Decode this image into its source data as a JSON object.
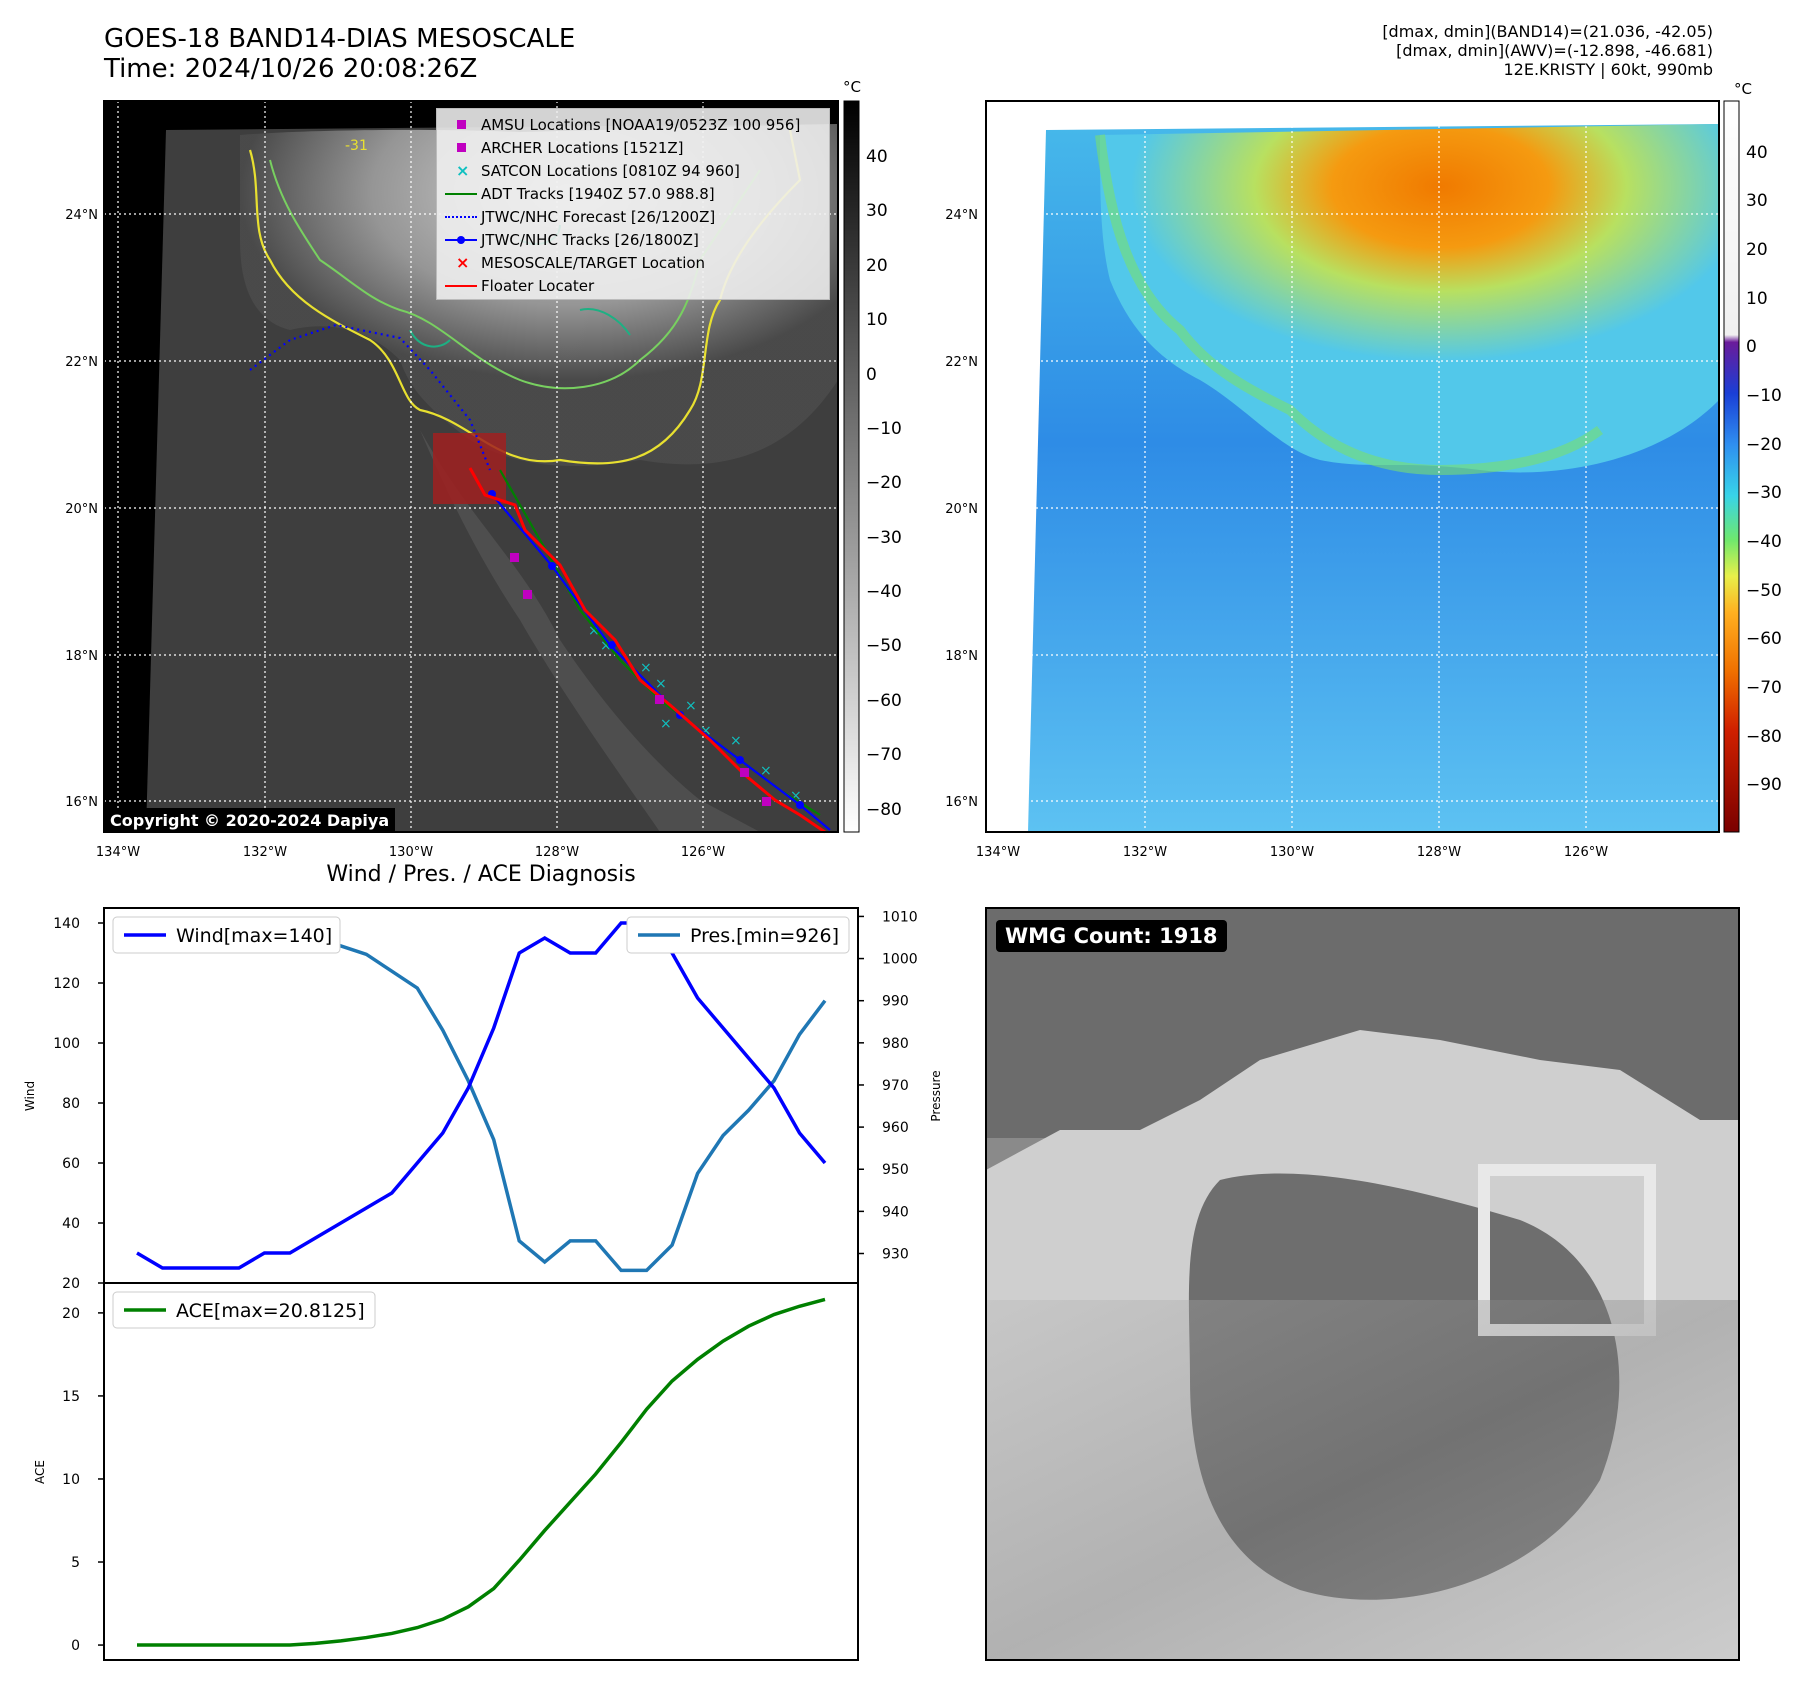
{
  "header": {
    "title_line1": "GOES-18 BAND14-DIAS MESOSCALE",
    "title_line2": "Time: 2024/10/26 20:08:26Z",
    "stats_line1": "[dmax, dmin](BAND14)=(21.036, -42.05)",
    "stats_line2": "[dmax, dmin](AWV)=(-12.898, -46.681)",
    "stats_line3": "12E.KRISTY | 60kt, 990mb"
  },
  "map_left": {
    "legend": [
      {
        "label": "AMSU Locations [NOAA19/0523Z 100 956]",
        "marker": "square",
        "color": "#c000c0"
      },
      {
        "label": "ARCHER Locations [1521Z]",
        "marker": "square",
        "color": "#c000c0"
      },
      {
        "label": "SATCON Locations [0810Z 94 960]",
        "marker": "x",
        "color": "#10c0c0"
      },
      {
        "label": "ADT Tracks [1940Z 57.0 988.8]",
        "marker": "line",
        "color": "#008000"
      },
      {
        "label": "JTWC/NHC Forecast [26/1200Z]",
        "marker": "dotted",
        "color": "#0000ff"
      },
      {
        "label": "JTWC/NHC Tracks [26/1800Z]",
        "marker": "line-dot",
        "color": "#0000ff"
      },
      {
        "label": "MESOSCALE/TARGET Location",
        "marker": "x",
        "color": "#ff0000"
      },
      {
        "label": "Floater Locater",
        "marker": "line",
        "color": "#ff0000"
      }
    ],
    "copyright": "Copyright © 2020-2024 Dapiya",
    "contour_label": "-31",
    "colorbar_unit": "°C",
    "colorbar_ticks": [
      "40",
      "30",
      "20",
      "10",
      "0",
      "−10",
      "−20",
      "−30",
      "−40",
      "−50",
      "−60",
      "−70",
      "−80"
    ]
  },
  "map_right": {
    "colorbar_unit": "°C",
    "colorbar_ticks": [
      "40",
      "30",
      "20",
      "10",
      "0",
      "−10",
      "−20",
      "−30",
      "−40",
      "−50",
      "−60",
      "−70",
      "−80",
      "−90"
    ]
  },
  "map_axes": {
    "lat_labels": [
      "24°N",
      "22°N",
      "20°N",
      "18°N",
      "16°N"
    ],
    "lon_labels_left": [
      "134°W",
      "132°W",
      "130°W",
      "128°W",
      "126°W"
    ],
    "lon_labels_right": [
      "134°W",
      "132°W",
      "130°W",
      "128°W",
      "126°W"
    ]
  },
  "diagnosis": {
    "title": "Wind / Pres. / ACE Diagnosis",
    "wind_legend": "Wind[max=140]",
    "pres_legend": "Pres.[min=926]",
    "ace_legend": "ACE[max=20.8125]",
    "wind_ylabel": "Wind",
    "pres_ylabel": "Pressure",
    "ace_ylabel": "ACE",
    "wind_color": "#0000ff",
    "pres_color": "#1f77b4",
    "ace_color": "#008000"
  },
  "chart_data": [
    {
      "type": "line",
      "series": [
        {
          "name": "Wind[max=140]",
          "axis": "left",
          "values": [
            30,
            25,
            25,
            25,
            25,
            30,
            30,
            35,
            40,
            45,
            50,
            60,
            70,
            85,
            105,
            130,
            135,
            130,
            130,
            140,
            140,
            130,
            115,
            105,
            95,
            85,
            70,
            60
          ]
        },
        {
          "name": "Pres.[min=926]",
          "axis": "right",
          "values": [
            1006,
            1006,
            1006,
            1007,
            1007,
            1007,
            1005,
            1005,
            1003,
            1001,
            997,
            993,
            983,
            971,
            957,
            933,
            928,
            933,
            933,
            926,
            926,
            932,
            949,
            958,
            964,
            971,
            982,
            990
          ]
        }
      ],
      "ylabel": "Wind",
      "ylim": [
        20,
        145
      ],
      "yticks": [
        20,
        40,
        60,
        80,
        100,
        120,
        140
      ],
      "y2label": "Pressure",
      "y2lim": [
        923,
        1012
      ],
      "y2ticks": [
        930,
        940,
        950,
        960,
        970,
        980,
        990,
        1000,
        1010
      ]
    },
    {
      "type": "line",
      "series": [
        {
          "name": "ACE[max=20.8125]",
          "values": [
            0,
            0,
            0,
            0,
            0,
            0,
            0,
            0.1,
            0.25,
            0.45,
            0.7,
            1.05,
            1.55,
            2.3,
            3.4,
            5.1,
            6.9,
            8.6,
            10.3,
            12.2,
            14.2,
            15.9,
            17.2,
            18.3,
            19.2,
            19.9,
            20.4,
            20.8125
          ]
        }
      ],
      "ylabel": "ACE",
      "ylim": [
        -0.9,
        21.8
      ],
      "yticks": [
        0,
        5,
        10,
        15,
        20
      ]
    }
  ],
  "wmg": {
    "count_label": "WMG Count: 1918"
  }
}
